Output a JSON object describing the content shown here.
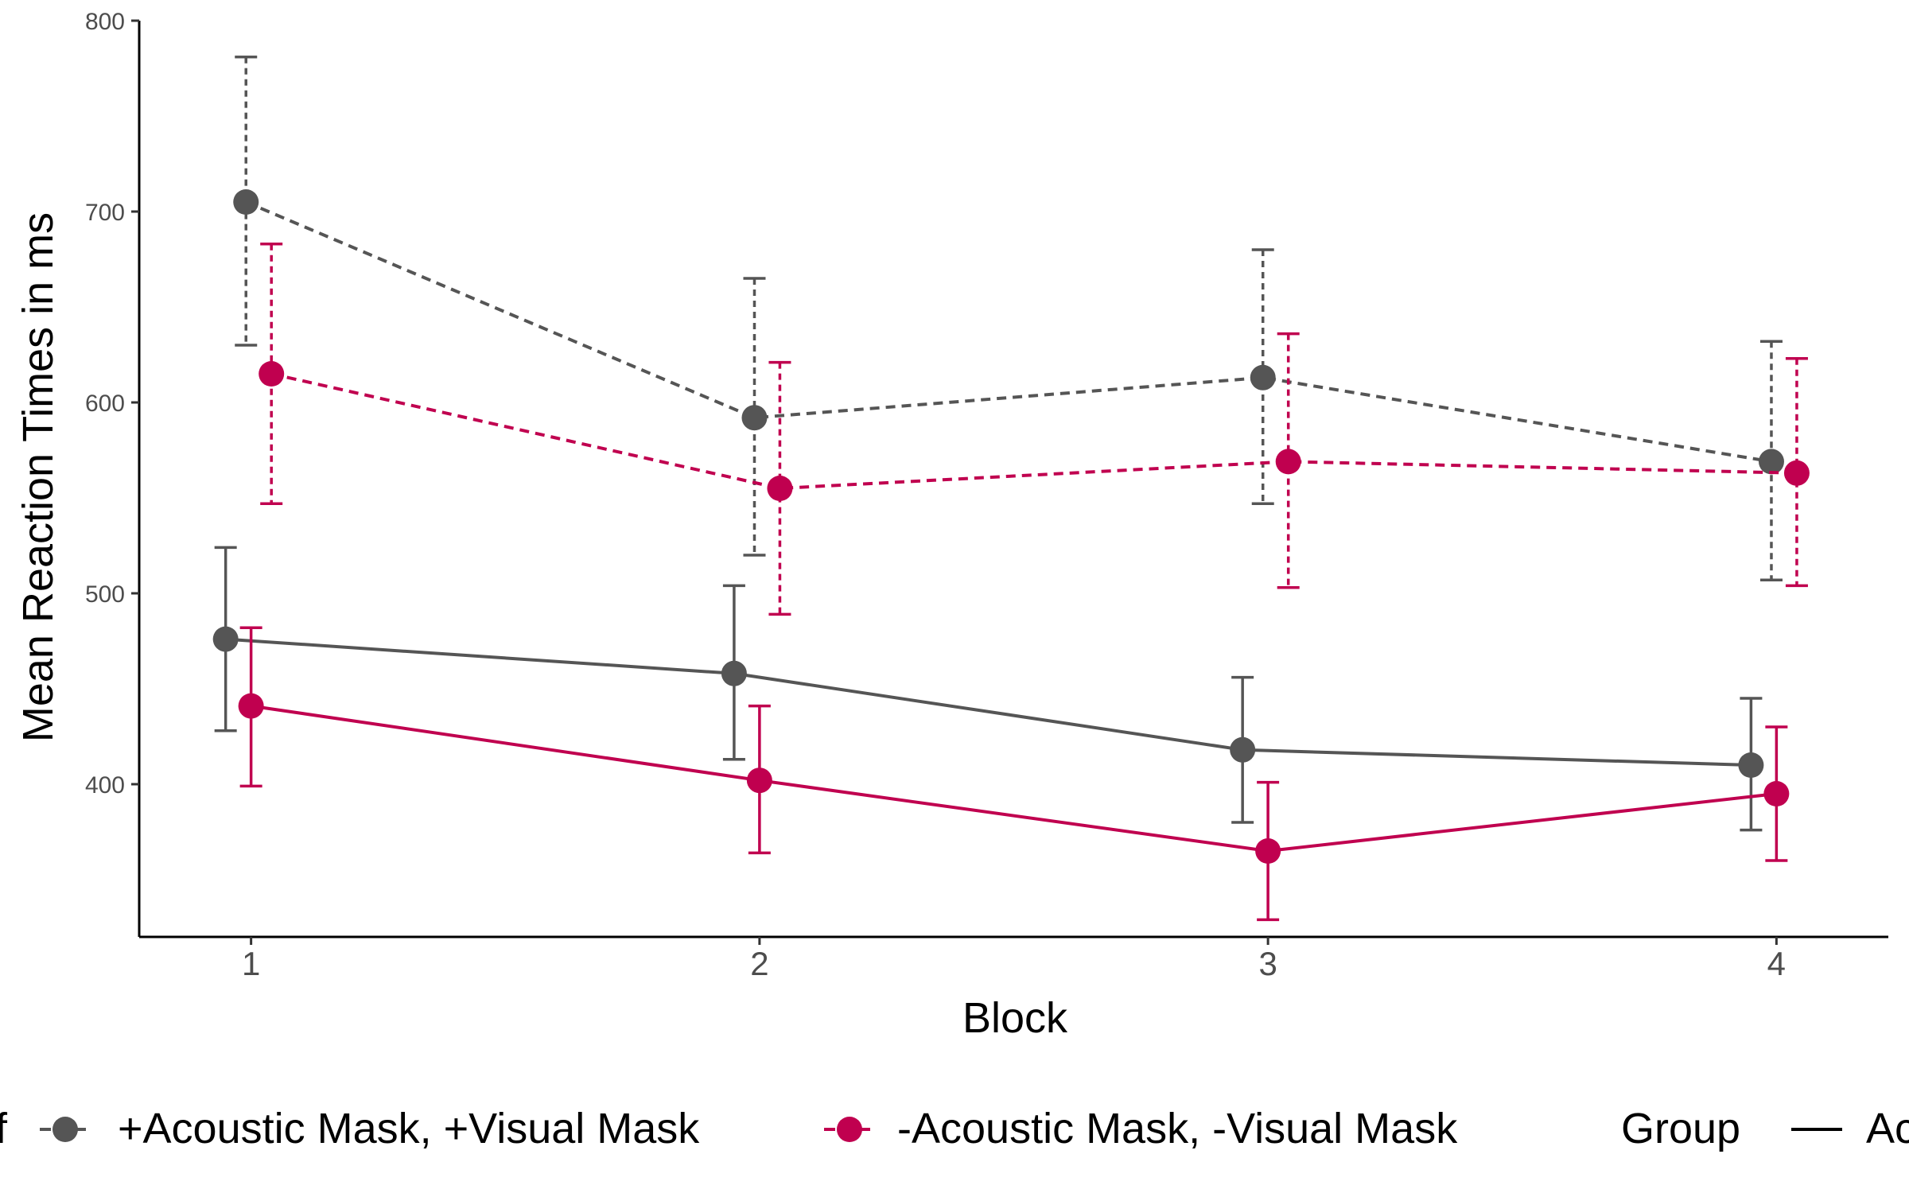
{
  "chart_data": {
    "type": "line",
    "title": "",
    "xlabel": "Block",
    "ylabel": "Mean Reaction Times in ms",
    "x": [
      1,
      2,
      3,
      4
    ],
    "xlim": [
      0.78,
      4.22
    ],
    "ylim": [
      320,
      800
    ],
    "yticks": [
      400,
      500,
      600,
      700,
      800
    ],
    "grid": false,
    "legend_position": "bottom",
    "series": [
      {
        "name": "+Acoustic Mask, +Visual Mask",
        "group": "solid",
        "color": "#555555",
        "dodge": -0.05,
        "values": [
          476,
          458,
          418,
          410
        ],
        "err_low": [
          428,
          413,
          380,
          376
        ],
        "err_high": [
          524,
          504,
          456,
          445
        ]
      },
      {
        "name": "-Acoustic Mask, -Visual Mask",
        "group": "solid",
        "color": "#c0004f",
        "dodge": 0.0,
        "values": [
          441,
          402,
          365,
          395
        ],
        "err_low": [
          399,
          364,
          329,
          360
        ],
        "err_high": [
          482,
          441,
          401,
          430
        ]
      },
      {
        "name": "+Acoustic Mask, +Visual Mask",
        "group": "dashed",
        "color": "#555555",
        "dodge": -0.01,
        "values": [
          705,
          592,
          613,
          569
        ],
        "err_low": [
          630,
          520,
          547,
          507
        ],
        "err_high": [
          781,
          665,
          680,
          632
        ]
      },
      {
        "name": "-Acoustic Mask, -Visual Mask",
        "group": "dashed",
        "color": "#c0004f",
        "dodge": 0.04,
        "values": [
          615,
          555,
          569,
          563
        ],
        "err_low": [
          547,
          489,
          503,
          504
        ],
        "err_high": [
          683,
          621,
          636,
          623
        ]
      }
    ],
    "legend": {
      "cut_left_text": "f",
      "items": [
        {
          "label": "+Acoustic Mask, +Visual Mask",
          "color": "#555555"
        },
        {
          "label": "-Acoustic Mask, -Visual Mask",
          "color": "#c0004f"
        }
      ],
      "group_title": "Group",
      "cut_right_text": "Ac"
    }
  }
}
